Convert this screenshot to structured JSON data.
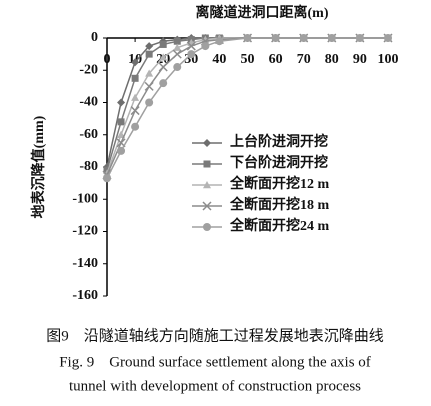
{
  "chart_data": {
    "type": "line",
    "x_label": "离隧道进洞口距离(m)",
    "y_label": "地表沉降值(mm)",
    "x": [
      0,
      5,
      10,
      15,
      20,
      25,
      30,
      35,
      40,
      50,
      60,
      70,
      80,
      90,
      100
    ],
    "series": [
      {
        "name": "上台阶进洞开挖",
        "color": "#6e6e6e",
        "marker": "diamond",
        "values": [
          -80,
          -40,
          -15,
          -5,
          -2,
          -1,
          0,
          0,
          0,
          0,
          0,
          0,
          0,
          0,
          0
        ]
      },
      {
        "name": "下台阶进洞开挖",
        "color": "#7a7a7a",
        "marker": "square",
        "values": [
          -82,
          -52,
          -25,
          -10,
          -4,
          -2,
          -1,
          0,
          0,
          0,
          0,
          0,
          0,
          0,
          0
        ]
      },
      {
        "name": "全断面开挖12 m",
        "color": "#b4b4b4",
        "marker": "triangle",
        "values": [
          -84,
          -60,
          -37,
          -22,
          -12,
          -6,
          -3,
          -1,
          0,
          0,
          0,
          0,
          0,
          0,
          0
        ]
      },
      {
        "name": "全断面开挖18 m",
        "color": "#8c8c8c",
        "marker": "cross",
        "values": [
          -85,
          -65,
          -45,
          -30,
          -18,
          -10,
          -5,
          -2,
          -1,
          0,
          0,
          0,
          0,
          0,
          0
        ]
      },
      {
        "name": "全断面开挖24 m",
        "color": "#a0a0a0",
        "marker": "circle",
        "values": [
          -87,
          -70,
          -55,
          -40,
          -28,
          -18,
          -10,
          -5,
          -2,
          0,
          0,
          0,
          0,
          0,
          0
        ]
      }
    ],
    "xlim": [
      0,
      100
    ],
    "xticks": [
      0,
      10,
      20,
      30,
      40,
      50,
      60,
      70,
      80,
      90,
      100
    ],
    "ylim": [
      -160,
      0
    ],
    "yticks": [
      0,
      -20,
      -40,
      -60,
      -80,
      -100,
      -120,
      -140,
      -160
    ],
    "caption": [
      "图9　沿隧道轴线方向随施工过程发展地表沉降曲线",
      "Fig. 9　Ground surface settlement along the axis of",
      "tunnel with development of construction process"
    ]
  }
}
